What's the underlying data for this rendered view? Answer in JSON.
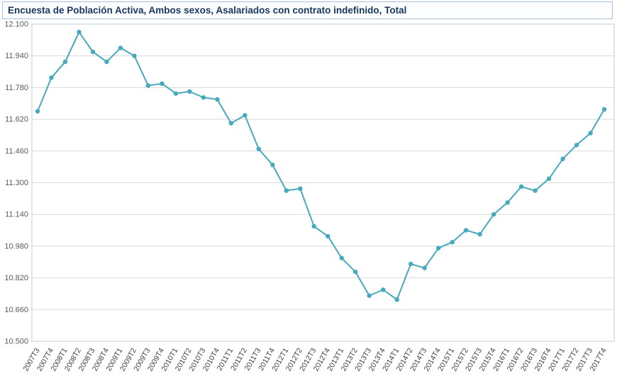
{
  "chart_data": {
    "type": "line",
    "title": "Encuesta de Población Activa, Ambos sexos, Asalariados con contrato indefinido, Total",
    "categories": [
      "2007T3",
      "2007T4",
      "2008T1",
      "2008T2",
      "2008T3",
      "2008T4",
      "2009T1",
      "2009T2",
      "2009T3",
      "2009T4",
      "2010T1",
      "2010T2",
      "2010T3",
      "2010T4",
      "2011T1",
      "2011T2",
      "2011T3",
      "2011T4",
      "2012T1",
      "2012T2",
      "2012T3",
      "2012T4",
      "2013T1",
      "2013T2",
      "2013T3",
      "2013T4",
      "2014T1",
      "2014T2",
      "2014T3",
      "2014T4",
      "2015T1",
      "2015T2",
      "2015T3",
      "2015T4",
      "2016T1",
      "2016T2",
      "2016T3",
      "2016T4",
      "2017T1",
      "2017T2",
      "2017T3",
      "2017T4"
    ],
    "values": [
      11.66,
      11.83,
      11.91,
      12.06,
      11.96,
      11.91,
      11.98,
      11.94,
      11.79,
      11.8,
      11.75,
      11.76,
      11.73,
      11.72,
      11.6,
      11.64,
      11.47,
      11.39,
      11.26,
      11.27,
      11.08,
      11.03,
      10.92,
      10.85,
      10.73,
      10.76,
      10.71,
      10.89,
      10.87,
      10.97,
      11.0,
      11.06,
      11.04,
      11.14,
      11.2,
      11.28,
      11.26,
      11.32,
      11.42,
      11.49,
      11.55,
      11.67
    ],
    "xlabel": "",
    "ylabel": "",
    "ylim": [
      10.5,
      12.1
    ],
    "ytick_step": 0.16,
    "grid": "horizontal",
    "legend_position": "none",
    "line_color": "#46a9bd",
    "grid_color": "#d9d9d9",
    "plot_border_color": "#c0ccd4",
    "tick_label_color": "#595959",
    "x_label_color": "#3c3c3c",
    "title_color": "#17375e"
  }
}
